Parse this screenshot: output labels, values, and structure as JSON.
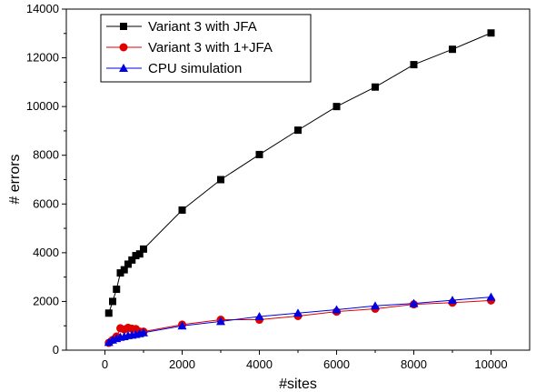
{
  "chart_data": {
    "type": "line",
    "xlabel": "#sites",
    "ylabel": "# errors",
    "xlim": [
      -1000,
      11000
    ],
    "ylim": [
      0,
      14000
    ],
    "xticks": [
      0,
      2000,
      4000,
      6000,
      8000,
      10000
    ],
    "yticks": [
      0,
      2000,
      4000,
      6000,
      8000,
      10000,
      12000,
      14000
    ],
    "legend_position": "top-left",
    "series": [
      {
        "name": "Variant 3 with JFA",
        "color": "#000000",
        "marker": "square",
        "x": [
          100,
          200,
          300,
          400,
          500,
          600,
          700,
          800,
          900,
          1000,
          2000,
          3000,
          4000,
          5000,
          6000,
          7000,
          8000,
          9000,
          10000
        ],
        "y": [
          1520,
          2000,
          2500,
          3170,
          3300,
          3530,
          3700,
          3880,
          3950,
          4150,
          5750,
          7000,
          8030,
          9030,
          10000,
          10800,
          11720,
          12350,
          13020
        ]
      },
      {
        "name": "Variant 3 with 1+JFA",
        "color": "#e00000",
        "marker": "circle",
        "x": [
          100,
          200,
          300,
          400,
          500,
          600,
          700,
          800,
          900,
          1000,
          2000,
          3000,
          4000,
          5000,
          6000,
          7000,
          8000,
          9000,
          10000
        ],
        "y": [
          300,
          420,
          560,
          900,
          850,
          920,
          880,
          870,
          760,
          760,
          1050,
          1250,
          1250,
          1400,
          1580,
          1700,
          1880,
          1950,
          2040
        ]
      },
      {
        "name": "CPU simulation",
        "color": "#0000e0",
        "marker": "triangle",
        "x": [
          100,
          200,
          300,
          400,
          500,
          600,
          700,
          800,
          900,
          1000,
          2000,
          3000,
          4000,
          5000,
          6000,
          7000,
          8000,
          9000,
          10000
        ],
        "y": [
          320,
          420,
          480,
          530,
          560,
          600,
          620,
          650,
          680,
          720,
          1000,
          1180,
          1380,
          1520,
          1660,
          1820,
          1920,
          2050,
          2180
        ]
      }
    ]
  }
}
